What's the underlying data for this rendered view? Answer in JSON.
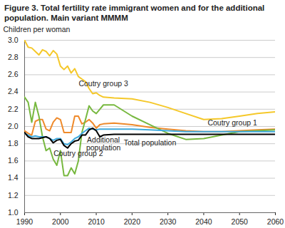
{
  "chart_data": {
    "type": "line",
    "title": "Figure 3. Total fertility rate immigrant women and for the additional population. Main variant MMMM",
    "y_label": "Children per woman",
    "x": [
      1990,
      1991,
      1992,
      1993,
      1994,
      1995,
      1996,
      1997,
      1998,
      1999,
      2000,
      2001,
      2002,
      2003,
      2004,
      2005,
      2006,
      2007,
      2008,
      2009,
      2010,
      2011,
      2012,
      2015,
      2020,
      2025,
      2030,
      2035,
      2040,
      2045,
      2050,
      2055,
      2060
    ],
    "series": [
      {
        "name": "Coutry group 3",
        "color": "#f5c829",
        "values": [
          3.0,
          2.92,
          2.91,
          2.87,
          2.83,
          2.89,
          2.87,
          2.82,
          2.88,
          2.84,
          2.7,
          2.66,
          2.7,
          2.62,
          2.67,
          2.58,
          2.55,
          2.52,
          2.44,
          2.38,
          2.39,
          2.36,
          2.34,
          2.33,
          2.32,
          2.28,
          2.22,
          2.15,
          2.08,
          2.09,
          2.12,
          2.15,
          2.17
        ]
      },
      {
        "name": "Coutry group 1",
        "color": "#ef8a2b",
        "values": [
          1.95,
          1.92,
          1.9,
          2.06,
          2.08,
          2.08,
          1.97,
          1.95,
          2.05,
          2.1,
          2.08,
          1.93,
          1.93,
          1.93,
          2.12,
          2.12,
          2.03,
          2.05,
          2.08,
          2.04,
          1.98,
          2.02,
          2.03,
          2.04,
          2.02,
          1.99,
          1.97,
          1.95,
          1.94,
          1.94,
          1.95,
          1.96,
          1.97
        ]
      },
      {
        "name": "Coutry group 2",
        "color": "#77b83f",
        "values": [
          2.34,
          2.28,
          2.05,
          2.28,
          2.12,
          1.88,
          1.72,
          1.75,
          1.62,
          1.55,
          1.72,
          1.43,
          1.43,
          1.52,
          1.45,
          1.6,
          1.93,
          2.08,
          2.24,
          2.18,
          2.15,
          2.2,
          2.25,
          2.25,
          2.12,
          2.02,
          1.92,
          1.85,
          1.86,
          1.9,
          1.94,
          1.95,
          1.96
        ]
      },
      {
        "name": "Additional population",
        "color": "#3fa9dc",
        "values": [
          1.92,
          1.9,
          1.88,
          1.89,
          1.88,
          1.88,
          1.88,
          1.86,
          1.84,
          1.86,
          1.86,
          1.8,
          1.79,
          1.82,
          1.86,
          1.88,
          1.92,
          1.95,
          1.98,
          1.97,
          1.96,
          1.97,
          1.97,
          1.97,
          1.97,
          1.96,
          1.95,
          1.94,
          1.94,
          1.94,
          1.94,
          1.94,
          1.94
        ]
      },
      {
        "name": "Total population",
        "color": "#000000",
        "values": [
          1.93,
          1.88,
          1.86,
          1.86,
          1.86,
          1.87,
          1.88,
          1.86,
          1.81,
          1.84,
          1.85,
          1.78,
          1.75,
          1.8,
          1.83,
          1.84,
          1.9,
          1.9,
          1.96,
          1.98,
          1.95,
          1.88,
          1.9,
          1.91,
          1.91,
          1.91,
          1.91,
          1.91,
          1.91,
          1.91,
          1.91,
          1.91,
          1.91
        ]
      }
    ],
    "xlim": [
      1990,
      2060
    ],
    "xticks": [
      1990,
      2000,
      2010,
      2020,
      2030,
      2040,
      2050,
      2060
    ],
    "ylim": [
      1.0,
      3.0
    ],
    "yticks": [
      {
        "value": 1.0,
        "label": "1.0"
      },
      {
        "value": 1.2,
        "label": "1.2"
      },
      {
        "value": 1.4,
        "label": "1.4"
      },
      {
        "value": 1.6,
        "label": "1.6"
      },
      {
        "value": 1.8,
        "label": "1.8"
      },
      {
        "value": 2.0,
        "label": "2.0"
      },
      {
        "value": 2.2,
        "label": "2.2"
      },
      {
        "value": 2.4,
        "label": "2.4"
      },
      {
        "value": 2.6,
        "label": "2.6"
      },
      {
        "value": 2.8,
        "label": "2.8"
      },
      {
        "value": 3.0,
        "label": "3.0"
      }
    ],
    "grid": true,
    "annotations": [
      {
        "text": "Coutry group 3",
        "x": 2012,
        "y": 2.5
      },
      {
        "text": "Coutry group 1",
        "x": 2048,
        "y": 2.04
      },
      {
        "text": "Coutry group 2",
        "x": 2005,
        "y": 1.69
      },
      {
        "text": "Additional\npopulation",
        "x": 2012,
        "y": 1.8
      },
      {
        "text": "Total population",
        "x": 2025,
        "y": 1.81
      }
    ]
  }
}
